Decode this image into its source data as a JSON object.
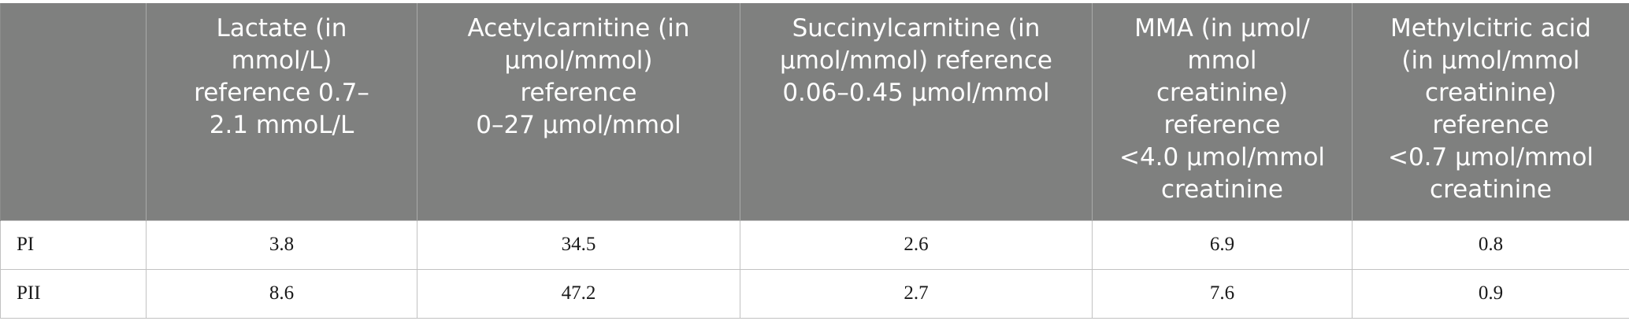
{
  "table": {
    "headers": [
      "",
      "Lactate (in\nmmol/L)\nreference 0.7–\n2.1 mmoL/L",
      "Acetylcarnitine (in\nμmol/mmol)\nreference\n0–27 μmol/mmol",
      "Succinylcarnitine (in\nμmol/mmol) reference\n0.06–0.45 μmol/mmol",
      "MMA (in μmol/\nmmol\ncreatinine)\nreference\n<4.0 μmol/mmol\ncreatinine",
      "Methylcitric acid\n(in μmol/mmol\ncreatinine)\nreference\n<0.7 μmol/mmol\ncreatinine"
    ],
    "rows": [
      {
        "label": "PI",
        "values": [
          "3.8",
          "34.5",
          "2.6",
          "6.9",
          "0.8"
        ]
      },
      {
        "label": "PII",
        "values": [
          "8.6",
          "47.2",
          "2.7",
          "7.6",
          "0.9"
        ]
      }
    ]
  },
  "colors": {
    "header_bg": "#7f807f",
    "header_text": "#ffffff",
    "grid": "#c2c2c2"
  }
}
